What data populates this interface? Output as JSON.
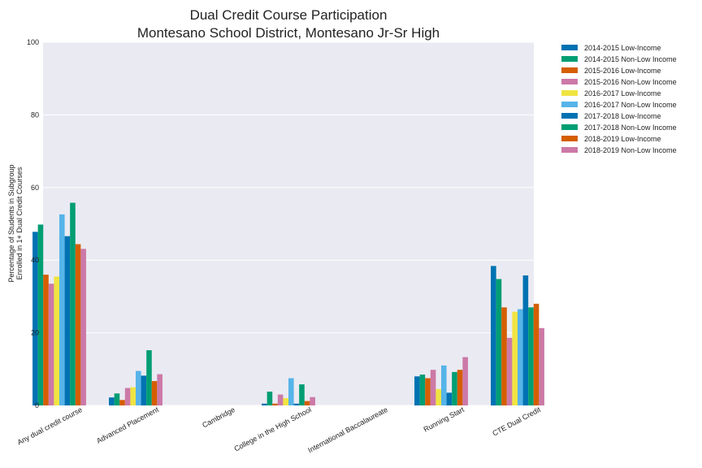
{
  "chart_data": {
    "type": "bar",
    "title": "Dual Credit Course Participation",
    "subtitle": "Montesano School District, Montesano Jr-Sr High",
    "xlabel": "",
    "ylabel": "Percentage of Students in Subgroup",
    "ylabel2": "Enrolled in 1+ Dual Credit Courses",
    "ylim": [
      0,
      100
    ],
    "yticks": [
      "0",
      "20",
      "40",
      "60",
      "80",
      "100"
    ],
    "grid": true,
    "legend_position": "outside-top-right",
    "categories": [
      "Any dual credit course",
      "Advanced Placement",
      "Cambridge",
      "College in the High School",
      "International Baccalaureate",
      "Running Start",
      "CTE Dual Credit"
    ],
    "series": [
      {
        "name": "2014-2015 Low-Income",
        "color": "#0072B2",
        "values": [
          47.8,
          2.2,
          0,
          0.5,
          0,
          8.0,
          38.4
        ]
      },
      {
        "name": "2014-2015 Non-Low Income",
        "color": "#009E73",
        "values": [
          49.8,
          3.3,
          0,
          3.8,
          0,
          8.5,
          34.8
        ]
      },
      {
        "name": "2015-2016 Low-Income",
        "color": "#D55E00",
        "values": [
          36.0,
          1.5,
          0,
          0.5,
          0,
          7.5,
          27.0
        ]
      },
      {
        "name": "2015-2016 Non-Low Income",
        "color": "#CC79A7",
        "values": [
          33.5,
          4.8,
          0,
          3.0,
          0,
          9.8,
          18.6
        ]
      },
      {
        "name": "2016-2017 Low-Income",
        "color": "#F0E442",
        "values": [
          35.5,
          5.0,
          0,
          2.0,
          0,
          4.5,
          25.8
        ]
      },
      {
        "name": "2016-2017 Non-Low Income",
        "color": "#56B4E9",
        "values": [
          52.6,
          9.5,
          0,
          7.5,
          0,
          11.0,
          26.5
        ]
      },
      {
        "name": "2017-2018 Low-Income",
        "color": "#0072B2",
        "values": [
          46.6,
          8.2,
          0,
          0.5,
          0,
          3.5,
          35.8
        ]
      },
      {
        "name": "2017-2018 Non-Low Income",
        "color": "#009E73",
        "values": [
          55.8,
          15.2,
          0,
          5.8,
          0,
          9.2,
          27.0
        ]
      },
      {
        "name": "2018-2019 Low-Income",
        "color": "#D55E00",
        "values": [
          44.4,
          6.7,
          0,
          1.2,
          0,
          9.8,
          28.0
        ]
      },
      {
        "name": "2018-2019 Non-Low Income",
        "color": "#CC79A7",
        "values": [
          43.1,
          8.6,
          0,
          2.3,
          0,
          13.3,
          21.3
        ]
      }
    ]
  }
}
